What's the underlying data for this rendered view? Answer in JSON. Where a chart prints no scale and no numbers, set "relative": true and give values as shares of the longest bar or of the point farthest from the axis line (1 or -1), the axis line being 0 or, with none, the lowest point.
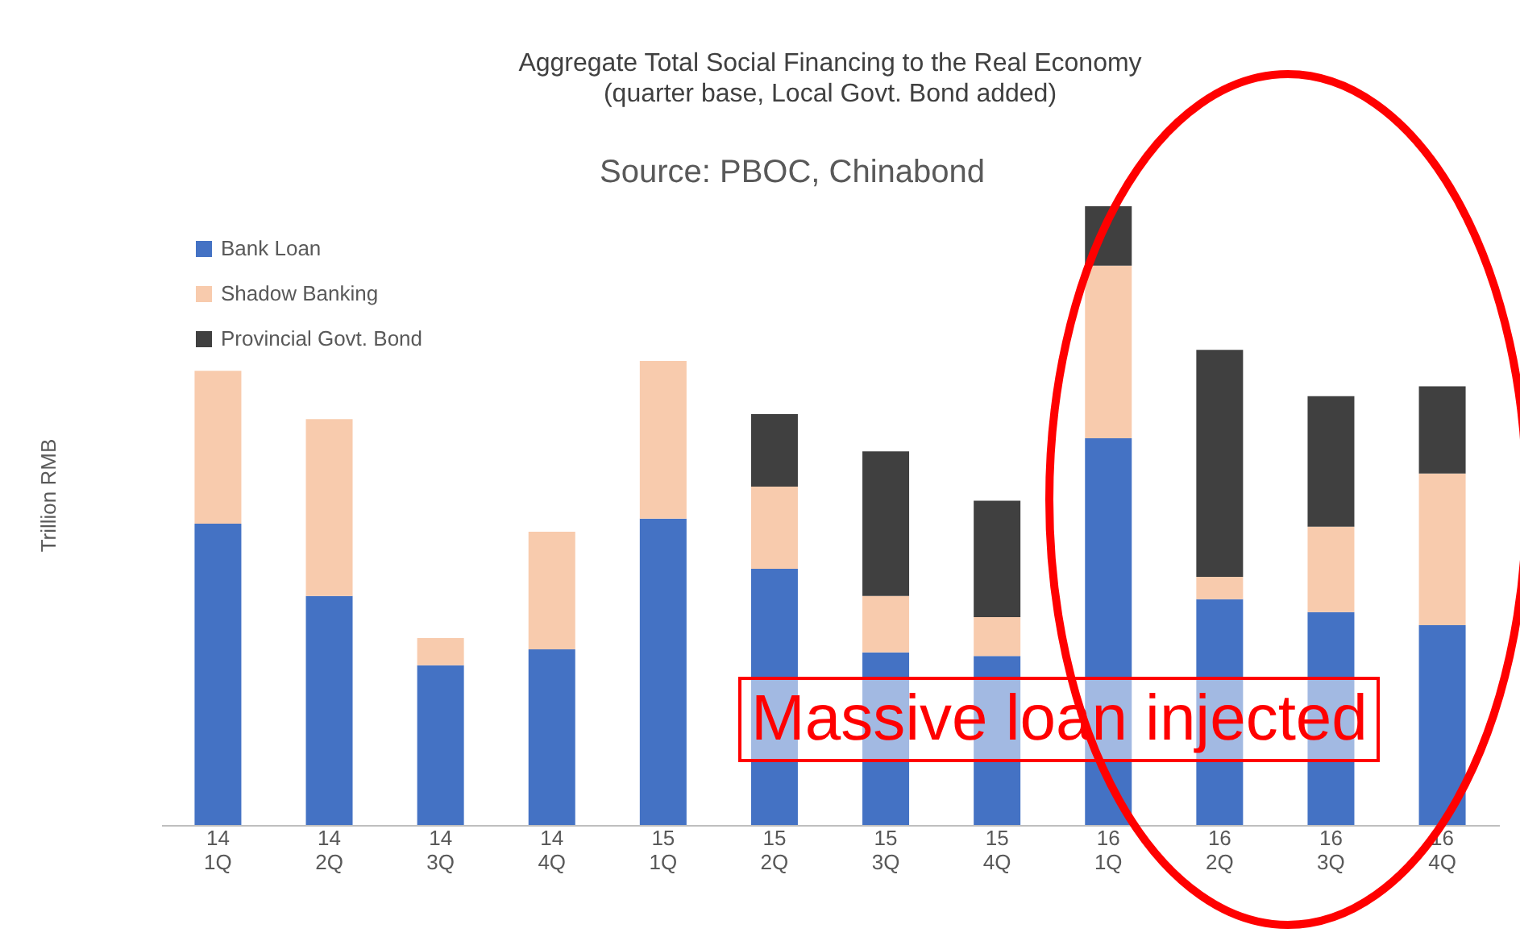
{
  "chart_data": {
    "type": "bar",
    "stacked": true,
    "relative": true,
    "title": "Aggregate Total Social Financing to the Real Economy",
    "subtitle": "(quarter base, Local Govt. Bond added)",
    "ylabel": "Trillion RMB",
    "categories": [
      "14 1Q",
      "14 2Q",
      "14 3Q",
      "14 4Q",
      "15 1Q",
      "15 2Q",
      "15 3Q",
      "15 4Q",
      "16 1Q",
      "16 2Q",
      "16 3Q",
      "16 4Q"
    ],
    "series": [
      {
        "name": "Bank Loan",
        "color": "#4472c4",
        "values": [
          0.487,
          0.37,
          0.258,
          0.284,
          0.495,
          0.414,
          0.279,
          0.273,
          0.625,
          0.365,
          0.344,
          0.323
        ]
      },
      {
        "name": "Shadow Banking",
        "color": "#f8cbad",
        "values": [
          0.247,
          0.286,
          0.044,
          0.19,
          0.255,
          0.133,
          0.091,
          0.063,
          0.279,
          0.036,
          0.138,
          0.245
        ]
      },
      {
        "name": "Provincial Govt. Bond",
        "color": "#404040",
        "values": [
          0,
          0,
          0,
          0,
          0,
          0.117,
          0.234,
          0.188,
          0.096,
          0.367,
          0.211,
          0.141
        ]
      }
    ],
    "legend": "top left",
    "annotations": [
      "Source: PBOC, Chinabond",
      "Massive loan injected"
    ]
  }
}
